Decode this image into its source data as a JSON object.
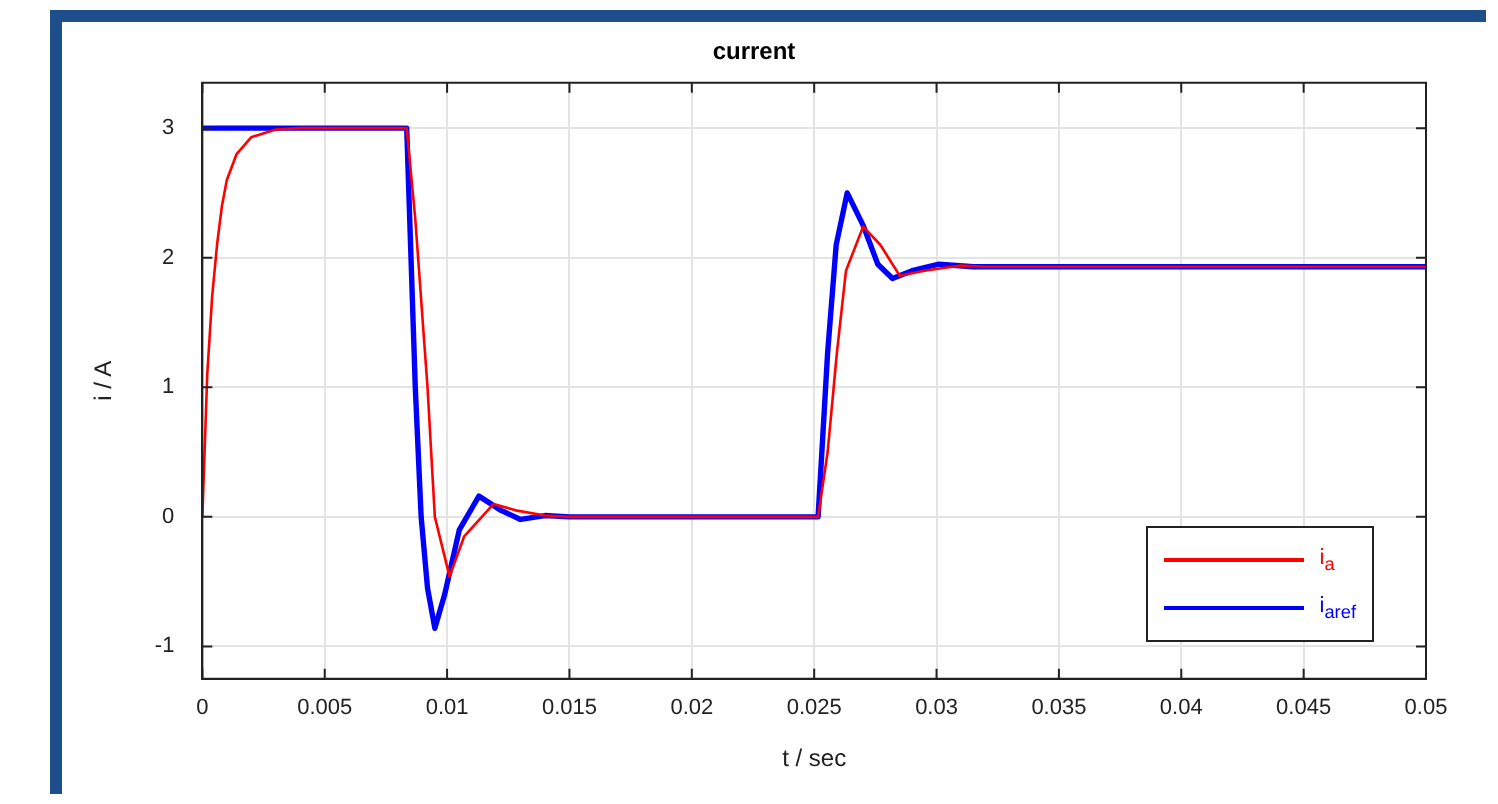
{
  "chart_data": {
    "type": "line",
    "title": "current",
    "xlabel": "t / sec",
    "ylabel": "i / A",
    "xlim": [
      0,
      0.05
    ],
    "xticks": [
      0,
      0.005,
      0.01,
      0.015,
      0.02,
      0.025,
      0.03,
      0.035,
      0.04,
      0.045,
      0.05
    ],
    "ylim": [
      -1.25,
      3.35
    ],
    "yticks": [
      -1,
      0,
      1,
      2,
      3
    ],
    "grid": true,
    "legend": "bottom right",
    "marker": "none",
    "line_style": "solid",
    "series": [
      {
        "name": "i$_{a}$",
        "color": "#ff0000",
        "x": [
          0,
          0.0002,
          0.0004,
          0.0006,
          0.0008,
          0.001,
          0.0014,
          0.002,
          0.003,
          0.004,
          0.00835,
          0.0087,
          0.0092,
          0.0095,
          0.0101,
          0.0107,
          0.0119,
          0.0128,
          0.014,
          0.015,
          0.025,
          0.02516,
          0.02555,
          0.02593,
          0.0263,
          0.027,
          0.0277,
          0.0285,
          0.0295,
          0.031,
          0.032,
          0.05
        ],
        "values": [
          0,
          1.1,
          1.7,
          2.1,
          2.4,
          2.6,
          2.8,
          2.93,
          2.99,
          3,
          3,
          2.3,
          1,
          0,
          -0.46,
          -0.15,
          0.1,
          0.05,
          0.01,
          0,
          0,
          0,
          0.5,
          1.27,
          1.9,
          2.24,
          2.1,
          1.86,
          1.9,
          1.94,
          1.93,
          1.93
        ]
      },
      {
        "name": "i$_{aref}$",
        "color": "#0000ff",
        "x": [
          0,
          0.00835,
          0.0087,
          0.00894,
          0.0092,
          0.0095,
          0.0099,
          0.0105,
          0.0113,
          0.0122,
          0.013,
          0.014,
          0.015,
          0.025,
          0.02516,
          0.02555,
          0.0259,
          0.02635,
          0.027,
          0.0276,
          0.0282,
          0.029,
          0.0301,
          0.0315,
          0.05
        ],
        "values": [
          3,
          3,
          1,
          0,
          -0.55,
          -0.86,
          -0.6,
          -0.1,
          0.16,
          0.05,
          -0.02,
          0.01,
          0,
          0,
          0,
          1.27,
          2.1,
          2.5,
          2.25,
          1.95,
          1.84,
          1.9,
          1.95,
          1.93,
          1.93
        ]
      }
    ]
  }
}
